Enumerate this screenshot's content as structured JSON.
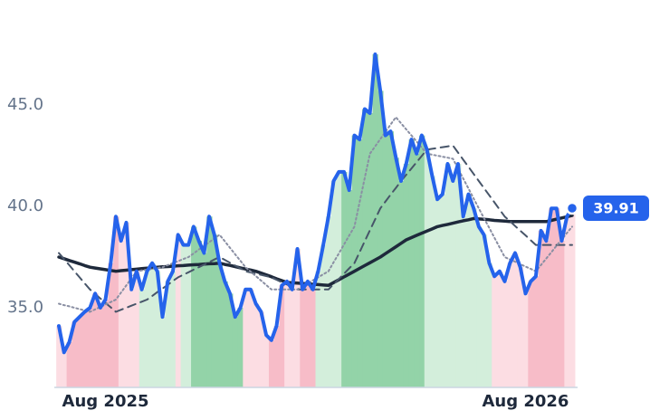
{
  "chart_data": {
    "type": "line",
    "categories": [
      null,
      null,
      null,
      null,
      null,
      null,
      null,
      null,
      null,
      "Aug 2025",
      null,
      null,
      null,
      null,
      null,
      null,
      null,
      null,
      null,
      null,
      null,
      null,
      null,
      null,
      null,
      null,
      null,
      null,
      null,
      null,
      null,
      null,
      null,
      null,
      null,
      null,
      null,
      null,
      null,
      null,
      null,
      null,
      null,
      null,
      null,
      null,
      null,
      null,
      null,
      null,
      null,
      null,
      null,
      null,
      null,
      null,
      null,
      null,
      null,
      null,
      null,
      null,
      null,
      null,
      null,
      null,
      null,
      null,
      null,
      null,
      null,
      null,
      null,
      null,
      null,
      null,
      null,
      null,
      null,
      null,
      null,
      null,
      null,
      null,
      null,
      null,
      null,
      null,
      null,
      null,
      "Aug 2026",
      null,
      null,
      null,
      null,
      null,
      null,
      null,
      null,
      null
    ],
    "ylim": [
      31.07,
      50.18
    ],
    "yticks": [
      {
        "value": 35,
        "label": "35.0"
      },
      {
        "value": 40,
        "label": "40.0"
      },
      {
        "value": 45,
        "label": "45.0"
      }
    ],
    "grid": false,
    "series": [
      {
        "color": "#2563eb",
        "line_style": "solid",
        "values": [
          34.1,
          32.8,
          33.3,
          34.3,
          34.55,
          34.8,
          35.0,
          35.7,
          35.0,
          35.4,
          37.2,
          39.5,
          38.3,
          39.2,
          35.9,
          36.8,
          35.9,
          36.8,
          37.2,
          36.8,
          34.55,
          36.3,
          36.8,
          38.6,
          38.1,
          38.1,
          39.0,
          38.3,
          37.7,
          39.5,
          38.6,
          37.2,
          36.3,
          35.7,
          34.55,
          35.0,
          35.9,
          35.9,
          35.2,
          34.8,
          33.65,
          33.4,
          34.1,
          36.1,
          36.3,
          35.9,
          37.9,
          35.9,
          36.3,
          35.9,
          36.8,
          38.1,
          39.5,
          41.25,
          41.7,
          41.7,
          40.8,
          43.5,
          43.3,
          44.8,
          44.6,
          47.5,
          45.7,
          43.5,
          43.7,
          42.4,
          41.25,
          42.1,
          43.3,
          42.6,
          43.5,
          42.8,
          41.5,
          40.35,
          40.6,
          42.1,
          41.25,
          42.1,
          39.5,
          40.6,
          39.9,
          39.0,
          38.6,
          37.2,
          36.55,
          36.8,
          36.3,
          37.2,
          37.7,
          37.0,
          35.7,
          36.3,
          36.55,
          38.8,
          38.3,
          39.9,
          39.9,
          38.3,
          39.5,
          39.91
        ],
        "area_colors": [
          "#fcdde3",
          "#fcdde3",
          "#f7bcc8",
          "#f7bcc8",
          "#f7bcc8",
          "#f7bcc8",
          "#f7bcc8",
          "#f7bcc8",
          "#f7bcc8",
          "#f7bcc8",
          "#f7bcc8",
          "#f7bcc8",
          "#fcdde3",
          "#fcdde3",
          "#fcdde3",
          "#fcdde3",
          "#d3eedb",
          "#d3eedb",
          "#d3eedb",
          "#d3eedb",
          "#d3eedb",
          "#d3eedb",
          "#d3eedb",
          "#fcdde3",
          "#d3eedb",
          "#d3eedb",
          "#93d3a8",
          "#93d3a8",
          "#93d3a8",
          "#93d3a8",
          "#93d3a8",
          "#93d3a8",
          "#93d3a8",
          "#93d3a8",
          "#93d3a8",
          "#93d3a8",
          "#fcdde3",
          "#fcdde3",
          "#fcdde3",
          "#fcdde3",
          "#fcdde3",
          "#f7bcc8",
          "#f7bcc8",
          "#f7bcc8",
          "#fcdde3",
          "#fcdde3",
          "#fcdde3",
          "#f7bcc8",
          "#f7bcc8",
          "#f7bcc8",
          "#d3eedb",
          "#d3eedb",
          "#d3eedb",
          "#d3eedb",
          "#d3eedb",
          "#93d3a8",
          "#93d3a8",
          "#93d3a8",
          "#93d3a8",
          "#93d3a8",
          "#93d3a8",
          "#93d3a8",
          "#93d3a8",
          "#93d3a8",
          "#93d3a8",
          "#93d3a8",
          "#93d3a8",
          "#93d3a8",
          "#93d3a8",
          "#93d3a8",
          "#93d3a8",
          "#d3eedb",
          "#d3eedb",
          "#d3eedb",
          "#d3eedb",
          "#d3eedb",
          "#d3eedb",
          "#d3eedb",
          "#d3eedb",
          "#d3eedb",
          "#d3eedb",
          "#d3eedb",
          "#d3eedb",
          "#d3eedb",
          "#fcdde3",
          "#fcdde3",
          "#fcdde3",
          "#fcdde3",
          "#fcdde3",
          "#fcdde3",
          "#fcdde3",
          "#f7bcc8",
          "#f7bcc8",
          "#f7bcc8",
          "#f7bcc8",
          "#f7bcc8",
          "#f7bcc8",
          "#f7bcc8",
          "#fcdde3",
          "#fcdde3"
        ]
      },
      {
        "color": "#8a8fa3",
        "line_style": "dotted",
        "values": [
          35.2,
          35.13,
          35.07,
          35.0,
          34.93,
          34.87,
          34.8,
          34.92,
          35.04,
          35.16,
          35.28,
          35.4,
          35.75,
          36.1,
          36.45,
          36.8,
          36.84,
          36.88,
          36.92,
          36.96,
          37.0,
          37.1,
          37.2,
          37.3,
          37.4,
          37.5,
          37.68,
          37.87,
          38.05,
          38.23,
          38.42,
          38.6,
          38.28,
          37.96,
          37.64,
          37.32,
          37.0,
          36.78,
          36.56,
          36.34,
          36.12,
          35.9,
          35.9,
          35.9,
          35.9,
          35.9,
          35.9,
          36.05,
          36.2,
          36.35,
          36.5,
          36.65,
          36.8,
          37.24,
          37.68,
          38.12,
          38.56,
          39.0,
          40.2,
          41.4,
          42.6,
          42.96,
          43.32,
          43.68,
          44.04,
          44.4,
          44.1,
          43.8,
          43.5,
          43.2,
          42.9,
          42.6,
          42.55,
          42.5,
          42.45,
          42.4,
          42.35,
          41.86,
          41.37,
          40.88,
          40.39,
          39.9,
          39.42,
          38.94,
          38.46,
          37.98,
          37.5,
          37.38,
          37.27,
          37.15,
          37.03,
          36.92,
          36.8,
          37.11,
          37.43,
          37.74,
          38.06,
          38.37,
          38.69,
          39.0
        ]
      },
      {
        "color": "#475569",
        "line_style": "dashed",
        "values": [
          37.7,
          37.4,
          37.1,
          36.8,
          36.5,
          36.2,
          35.9,
          35.68,
          35.46,
          35.24,
          35.02,
          34.8,
          34.9,
          35.0,
          35.1,
          35.2,
          35.3,
          35.4,
          35.58,
          35.77,
          35.95,
          36.13,
          36.32,
          36.5,
          36.63,
          36.75,
          36.88,
          37.0,
          37.13,
          37.25,
          37.38,
          37.5,
          37.36,
          37.22,
          37.08,
          36.94,
          36.8,
          36.74,
          36.68,
          36.62,
          36.56,
          36.5,
          36.38,
          36.26,
          36.14,
          36.02,
          35.9,
          35.9,
          35.9,
          35.9,
          35.9,
          35.9,
          35.9,
          36.16,
          36.42,
          36.68,
          36.94,
          37.2,
          37.74,
          38.28,
          38.82,
          39.36,
          39.9,
          40.24,
          40.58,
          40.91,
          41.25,
          41.56,
          41.87,
          42.18,
          42.49,
          42.8,
          42.84,
          42.88,
          42.92,
          42.96,
          43.0,
          42.65,
          42.3,
          41.95,
          41.6,
          41.25,
          40.9,
          40.55,
          40.2,
          39.85,
          39.5,
          39.27,
          39.03,
          38.8,
          38.57,
          38.33,
          38.1,
          38.1,
          38.1,
          38.1,
          38.1,
          38.1,
          38.1,
          38.1
        ]
      },
      {
        "color": "#1e293b",
        "line_style": "solid",
        "values": [
          37.5,
          37.42,
          37.33,
          37.25,
          37.17,
          37.08,
          37.0,
          36.96,
          36.92,
          36.88,
          36.84,
          36.8,
          36.83,
          36.85,
          36.88,
          36.9,
          36.93,
          36.95,
          36.98,
          37.0,
          37.02,
          37.03,
          37.05,
          37.07,
          37.08,
          37.1,
          37.12,
          37.13,
          37.15,
          37.17,
          37.18,
          37.2,
          37.14,
          37.09,
          37.03,
          36.97,
          36.91,
          36.86,
          36.8,
          36.71,
          36.62,
          36.53,
          36.43,
          36.34,
          36.25,
          36.23,
          36.22,
          36.2,
          36.18,
          36.16,
          36.14,
          36.12,
          36.1,
          36.24,
          36.38,
          36.52,
          36.66,
          36.8,
          36.94,
          37.08,
          37.22,
          37.36,
          37.5,
          37.67,
          37.84,
          38.01,
          38.18,
          38.35,
          38.46,
          38.57,
          38.68,
          38.78,
          38.89,
          39.0,
          39.06,
          39.11,
          39.17,
          39.23,
          39.29,
          39.34,
          39.4,
          39.38,
          39.36,
          39.34,
          39.31,
          39.29,
          39.27,
          39.25,
          39.25,
          39.25,
          39.25,
          39.25,
          39.25,
          39.25,
          39.25,
          39.31,
          39.37,
          39.43,
          39.49,
          39.55
        ]
      }
    ]
  }
}
